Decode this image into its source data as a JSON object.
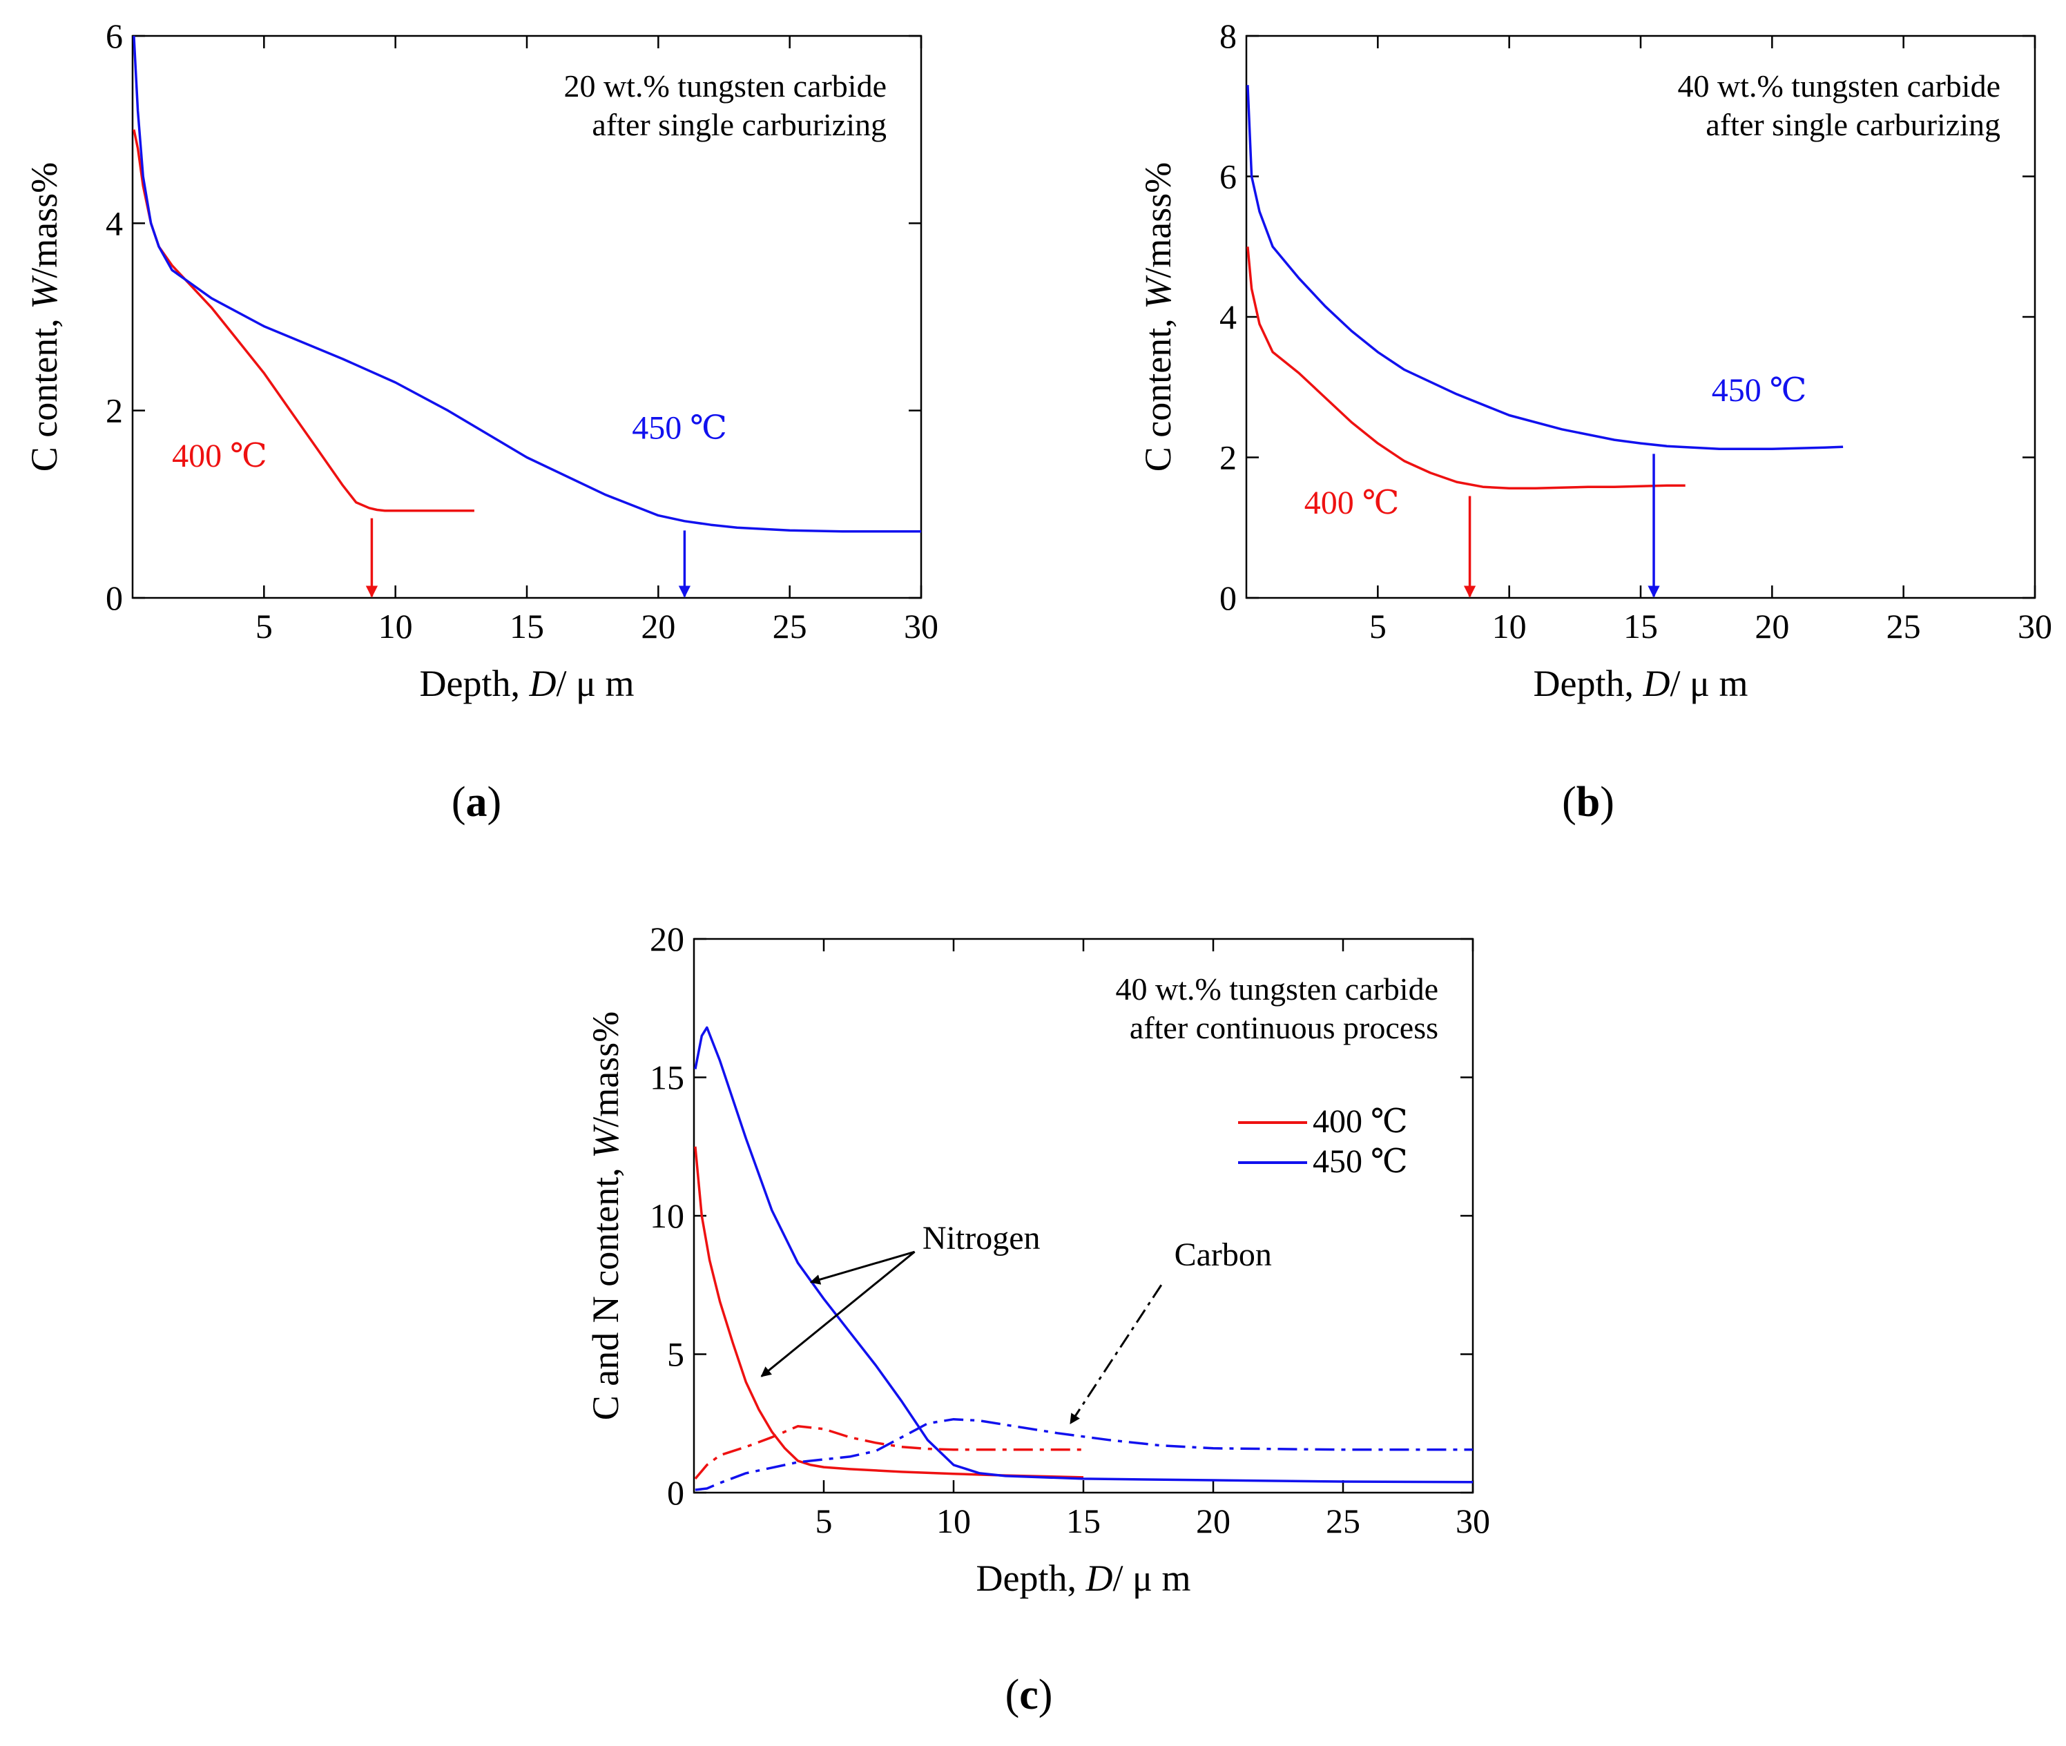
{
  "chart_data": [
    {
      "id": "a",
      "type": "line",
      "panel_label": "a",
      "title_lines": [
        "20 wt.% tungsten carbide",
        "after single carburizing"
      ],
      "xlabel": {
        "prefix": "Depth, ",
        "var": "D",
        "suffix": "/ μ m"
      },
      "ylabel": {
        "prefix": "C content, ",
        "var": "W",
        "suffix": "/mass%"
      },
      "xlim": [
        0,
        30
      ],
      "ylim": [
        0,
        6
      ],
      "xticks": [
        5,
        10,
        15,
        20,
        25,
        30
      ],
      "yticks": [
        0,
        2,
        4,
        6
      ],
      "series": [
        {
          "name": "400 ℃",
          "color": "#ee1111",
          "style": "solid",
          "x": [
            0.05,
            0.2,
            0.4,
            0.7,
            1.0,
            1.5,
            2.0,
            3.0,
            4.0,
            5.0,
            6.0,
            7.0,
            8.0,
            8.5,
            9.0,
            9.3,
            9.6,
            10.0,
            11.0,
            12.0,
            13.0
          ],
          "y": [
            5.0,
            4.8,
            4.4,
            4.0,
            3.75,
            3.55,
            3.4,
            3.1,
            2.75,
            2.4,
            2.0,
            1.6,
            1.2,
            1.02,
            0.96,
            0.94,
            0.93,
            0.93,
            0.93,
            0.93,
            0.93
          ]
        },
        {
          "name": "450 ℃",
          "color": "#1111ee",
          "style": "solid",
          "x": [
            0.05,
            0.2,
            0.4,
            0.7,
            1.0,
            1.5,
            2.0,
            3.0,
            5.0,
            8.0,
            10.0,
            12.0,
            15.0,
            18.0,
            20.0,
            21.0,
            22.0,
            23.0,
            25.0,
            27.0,
            30.0
          ],
          "y": [
            6.0,
            5.2,
            4.5,
            4.0,
            3.75,
            3.5,
            3.4,
            3.2,
            2.9,
            2.55,
            2.3,
            2.0,
            1.5,
            1.1,
            0.88,
            0.82,
            0.78,
            0.75,
            0.72,
            0.71,
            0.71
          ]
        }
      ],
      "annotations": [
        {
          "text": "400 ℃",
          "color": "#ee1111",
          "x": 1.5,
          "y": 1.4
        },
        {
          "text": "450 ℃",
          "color": "#1111ee",
          "x": 19.0,
          "y": 1.7
        }
      ],
      "arrows": [
        {
          "x": 9.1,
          "y_from": 0.85,
          "y_to": 0.0,
          "color": "#ee1111"
        },
        {
          "x": 21.0,
          "y_from": 0.72,
          "y_to": 0.0,
          "color": "#1111ee"
        }
      ]
    },
    {
      "id": "b",
      "type": "line",
      "panel_label": "b",
      "title_lines": [
        "40 wt.% tungsten carbide",
        "after single carburizing"
      ],
      "xlabel": {
        "prefix": "Depth, ",
        "var": "D",
        "suffix": "/ μ m"
      },
      "ylabel": {
        "prefix": "C content, ",
        "var": "W",
        "suffix": "/mass%"
      },
      "xlim": [
        0,
        30
      ],
      "ylim": [
        0,
        8
      ],
      "xticks": [
        5,
        10,
        15,
        20,
        25,
        30
      ],
      "yticks": [
        0,
        2,
        4,
        6,
        8
      ],
      "series": [
        {
          "name": "400 ℃",
          "color": "#ee1111",
          "style": "solid",
          "x": [
            0.05,
            0.2,
            0.5,
            1.0,
            2.0,
            3.0,
            4.0,
            5.0,
            6.0,
            7.0,
            8.0,
            9.0,
            10.0,
            11.0,
            12.0,
            13.0,
            14.0,
            15.0,
            16.0,
            16.7
          ],
          "y": [
            5.0,
            4.4,
            3.9,
            3.5,
            3.2,
            2.85,
            2.5,
            2.2,
            1.95,
            1.78,
            1.65,
            1.58,
            1.56,
            1.56,
            1.57,
            1.58,
            1.58,
            1.59,
            1.6,
            1.6
          ]
        },
        {
          "name": "450 ℃",
          "color": "#1111ee",
          "style": "solid",
          "x": [
            0.05,
            0.2,
            0.5,
            1.0,
            2.0,
            3.0,
            4.0,
            5.0,
            6.0,
            8.0,
            10.0,
            12.0,
            14.0,
            15.0,
            16.0,
            18.0,
            19.0,
            20.0,
            22.0,
            22.7
          ],
          "y": [
            7.3,
            6.0,
            5.5,
            5.0,
            4.55,
            4.15,
            3.8,
            3.5,
            3.25,
            2.9,
            2.6,
            2.4,
            2.25,
            2.2,
            2.16,
            2.12,
            2.12,
            2.12,
            2.14,
            2.15
          ]
        }
      ],
      "annotations": [
        {
          "text": "400 ℃",
          "color": "#ee1111",
          "x": 2.2,
          "y": 1.2
        },
        {
          "text": "450 ℃",
          "color": "#1111ee",
          "x": 17.7,
          "y": 2.8
        }
      ],
      "arrows": [
        {
          "x": 8.5,
          "y_from": 1.45,
          "y_to": 0.0,
          "color": "#ee1111"
        },
        {
          "x": 15.5,
          "y_from": 2.05,
          "y_to": 0.0,
          "color": "#1111ee"
        }
      ]
    },
    {
      "id": "c",
      "type": "line",
      "panel_label": "c",
      "title_lines": [
        "40 wt.% tungsten carbide",
        "after continuous process"
      ],
      "xlabel": {
        "prefix": "Depth, ",
        "var": "D",
        "suffix": "/ μ m"
      },
      "ylabel": {
        "prefix": "C and N content, ",
        "var": "W",
        "suffix": "/mass%"
      },
      "xlim": [
        0,
        30
      ],
      "ylim": [
        0,
        20
      ],
      "xticks": [
        5,
        10,
        15,
        20,
        25,
        30
      ],
      "yticks": [
        0,
        5,
        10,
        15,
        20
      ],
      "legend": {
        "position": "right",
        "entries": [
          {
            "label": "400 ℃",
            "color": "#ee1111"
          },
          {
            "label": "450 ℃",
            "color": "#1111ee"
          }
        ]
      },
      "series": [
        {
          "name": "Nitrogen 400 ℃",
          "color": "#ee1111",
          "style": "solid",
          "x": [
            0.05,
            0.3,
            0.6,
            1.0,
            1.5,
            2.0,
            2.5,
            3.0,
            3.5,
            4.0,
            4.5,
            5.0,
            6.0,
            8.0,
            10.0,
            12.0,
            15.0
          ],
          "y": [
            12.5,
            10.0,
            8.4,
            6.9,
            5.4,
            4.0,
            3.0,
            2.2,
            1.6,
            1.15,
            1.0,
            0.92,
            0.85,
            0.75,
            0.68,
            0.62,
            0.55
          ]
        },
        {
          "name": "Nitrogen 450 ℃",
          "color": "#1111ee",
          "style": "solid",
          "x": [
            0.05,
            0.3,
            0.5,
            1.0,
            2.0,
            3.0,
            4.0,
            5.0,
            6.0,
            7.0,
            8.0,
            9.0,
            10.0,
            11.0,
            12.0,
            15.0,
            20.0,
            25.0,
            30.0
          ],
          "y": [
            15.3,
            16.5,
            16.8,
            15.6,
            12.8,
            10.2,
            8.3,
            7.0,
            5.8,
            4.6,
            3.3,
            1.9,
            1.0,
            0.7,
            0.6,
            0.5,
            0.45,
            0.4,
            0.38
          ]
        },
        {
          "name": "Carbon 400 ℃",
          "color": "#ee1111",
          "style": "dashdot",
          "x": [
            0.05,
            0.5,
            1.0,
            1.5,
            2.0,
            3.0,
            4.0,
            5.0,
            6.0,
            7.0,
            8.0,
            9.0,
            10.0,
            12.0,
            15.0
          ],
          "y": [
            0.5,
            1.0,
            1.35,
            1.5,
            1.65,
            2.0,
            2.4,
            2.3,
            2.0,
            1.8,
            1.65,
            1.58,
            1.55,
            1.55,
            1.55
          ]
        },
        {
          "name": "Carbon 450 ℃",
          "color": "#1111ee",
          "style": "dashdot",
          "x": [
            0.05,
            0.5,
            1.0,
            2.0,
            3.0,
            4.0,
            5.0,
            6.0,
            7.0,
            8.0,
            9.0,
            10.0,
            11.0,
            12.0,
            14.0,
            16.0,
            18.0,
            20.0,
            25.0,
            30.0
          ],
          "y": [
            0.1,
            0.15,
            0.35,
            0.7,
            0.9,
            1.1,
            1.2,
            1.3,
            1.5,
            2.0,
            2.5,
            2.65,
            2.6,
            2.45,
            2.15,
            1.9,
            1.7,
            1.6,
            1.55,
            1.55
          ]
        }
      ],
      "annotations": [
        {
          "text": "Nitrogen",
          "color": "#000000",
          "x": 8.8,
          "y": 8.8
        },
        {
          "text": "Carbon",
          "color": "#000000",
          "x": 18.5,
          "y": 8.2
        }
      ],
      "pointers": [
        {
          "from": [
            8.5,
            8.7
          ],
          "to": [
            4.5,
            7.6
          ],
          "style": "solid"
        },
        {
          "from": [
            8.5,
            8.7
          ],
          "to": [
            2.6,
            4.2
          ],
          "style": "solid"
        },
        {
          "from": [
            18.0,
            7.5
          ],
          "to": [
            14.5,
            2.5
          ],
          "style": "dashdot"
        }
      ]
    }
  ]
}
